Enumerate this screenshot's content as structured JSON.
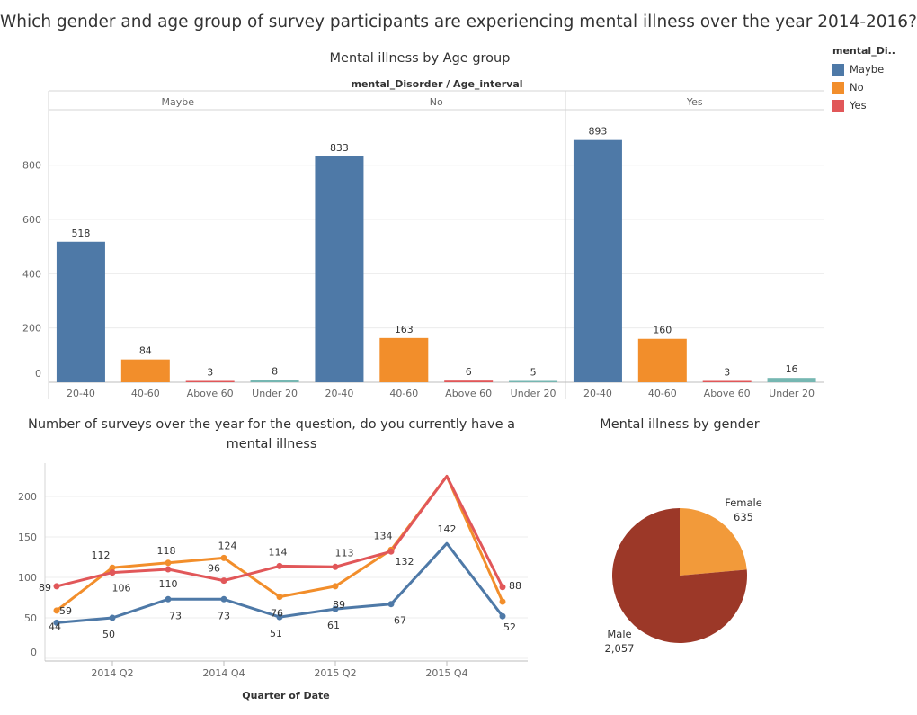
{
  "title": "Which gender and age group of survey participants are experiencing mental illness over the year 2014-2016?",
  "legend": {
    "title": "mental_Di..",
    "items": [
      {
        "label": "Maybe",
        "color": "#4e79a7"
      },
      {
        "label": "No",
        "color": "#f28e2b"
      },
      {
        "label": "Yes",
        "color": "#e15759"
      }
    ]
  },
  "colors": {
    "age_20_40": "#4e79a7",
    "age_40_60": "#f28e2b",
    "age_above_60": "#e15759",
    "age_under_20": "#76b7b2",
    "male": "#9c3828",
    "female": "#f29a3a"
  },
  "chart_data": [
    {
      "type": "bar",
      "title": "Mental illness by Age group",
      "header": "mental_Disorder / Age_interval",
      "panels": [
        "Maybe",
        "No",
        "Yes"
      ],
      "categories": [
        "20-40",
        "40-60",
        "Above 60",
        "Under 20"
      ],
      "values": [
        [
          518,
          84,
          3,
          8
        ],
        [
          833,
          163,
          6,
          5
        ],
        [
          893,
          160,
          3,
          16
        ]
      ],
      "yticks": [
        "0",
        "200",
        "400",
        "600",
        "800"
      ],
      "ylim": [
        0,
        960
      ]
    },
    {
      "type": "line",
      "title": "Number of surveys over the year for the question, do you currently have a mental illness",
      "xlabel": "Quarter of Date",
      "x": [
        "2014 Q1",
        "2014 Q2",
        "2014 Q3",
        "2014 Q4",
        "2015 Q1",
        "2015 Q2",
        "2015 Q3",
        "2015 Q4",
        "2016 Q1"
      ],
      "xticks": [
        "2014 Q2",
        "2014 Q4",
        "2015 Q2",
        "2015 Q4"
      ],
      "yticks": [
        "0",
        "50",
        "100",
        "150",
        "200"
      ],
      "ylim": [
        0,
        230
      ],
      "series": [
        {
          "name": "Maybe",
          "values": [
            44,
            50,
            73,
            73,
            51,
            61,
            67,
            142,
            52
          ],
          "labels": [
            "44",
            "50",
            "73",
            "73",
            "51",
            "61",
            "67",
            "142",
            "52"
          ]
        },
        {
          "name": "No",
          "values": [
            59,
            112,
            118,
            124,
            76,
            89,
            134,
            225,
            70
          ],
          "labels": [
            "59",
            "112",
            "118",
            "124",
            "76",
            "89",
            "134",
            "",
            ""
          ]
        },
        {
          "name": "Yes",
          "values": [
            89,
            106,
            110,
            96,
            114,
            113,
            132,
            225,
            88
          ],
          "labels": [
            "89",
            "106",
            "110",
            "96",
            "114",
            "113",
            "132",
            "",
            "88"
          ]
        }
      ]
    },
    {
      "type": "pie",
      "title": "Mental illness by gender",
      "slices": [
        {
          "label": "Female",
          "value": 635,
          "value_label": "635"
        },
        {
          "label": "Male",
          "value": 2057,
          "value_label": "2,057"
        }
      ]
    }
  ]
}
